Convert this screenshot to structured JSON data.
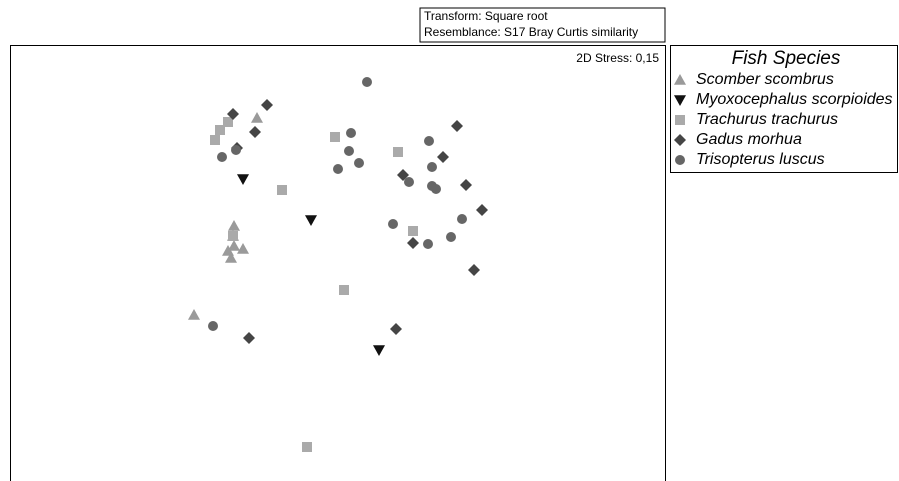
{
  "chart_data": {
    "type": "scatter",
    "annotations": [
      "Transform: Square root",
      "Resemblance: S17 Bray Curtis similarity",
      "2D Stress: 0,15"
    ],
    "legend_title": "Fish Species",
    "xlim": [
      0,
      655
    ],
    "ylim": [
      0,
      435
    ],
    "series": [
      {
        "name": "Scomber scombrus",
        "color": "#9a9a9a",
        "marker": "triangle",
        "x": [
          247,
          224,
          218,
          224,
          233,
          221,
          184,
          223
        ],
        "values": [
          362,
          254,
          229,
          234,
          231,
          222,
          165,
          244
        ]
      },
      {
        "name": "Myoxocephalus scorpioides",
        "color": "#111111",
        "marker": "triangle-down",
        "x": [
          233,
          301,
          369
        ],
        "values": [
          301,
          260,
          130
        ]
      },
      {
        "name": "Trachurus trachurus",
        "color": "#aaaaaa",
        "marker": "square",
        "x": [
          205,
          210,
          218,
          325,
          388,
          272,
          223,
          403,
          334,
          297
        ],
        "values": [
          340,
          350,
          358,
          343,
          328,
          290,
          244,
          249,
          190,
          33
        ]
      },
      {
        "name": "Gadus morhua",
        "color": "#454545",
        "marker": "diamond",
        "x": [
          223,
          257,
          245,
          227,
          447,
          433,
          393,
          456,
          472,
          403,
          464,
          386,
          239
        ],
        "values": [
          366,
          375,
          348,
          332,
          354,
          323,
          305,
          295,
          270,
          237,
          210,
          151,
          142
        ]
      },
      {
        "name": "Trisopterus luscus",
        "color": "#666666",
        "marker": "circle",
        "x": [
          357,
          341,
          339,
          349,
          328,
          419,
          422,
          399,
          422,
          426,
          452,
          383,
          418,
          441,
          203,
          212,
          226
        ],
        "values": [
          398,
          347,
          329,
          317,
          311,
          339,
          313,
          298,
          294,
          291,
          261,
          256,
          236,
          243,
          154,
          323,
          330
        ]
      }
    ]
  }
}
